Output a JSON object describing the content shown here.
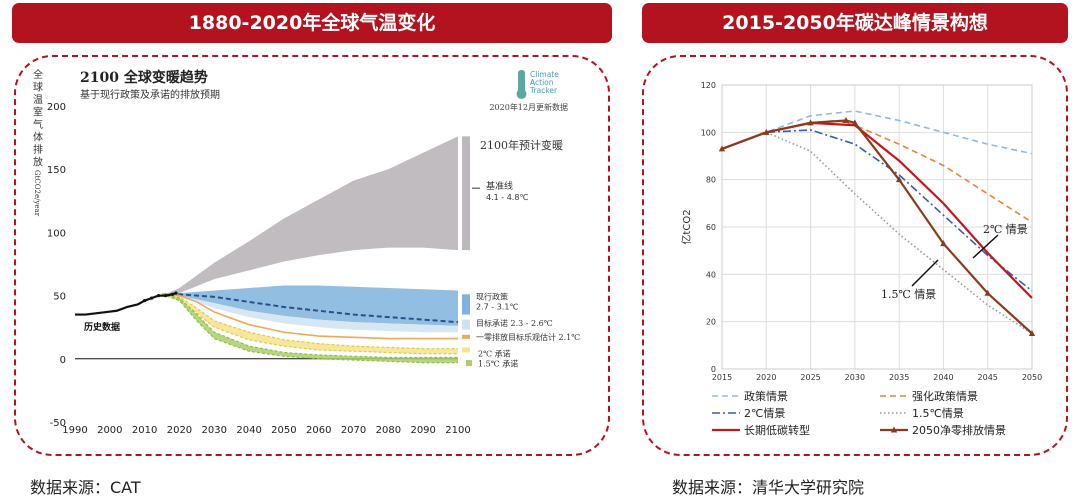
{
  "panels": {
    "left": {
      "title": "1880-2020年全球气温变化",
      "source": "数据来源：CAT"
    },
    "right": {
      "title": "2015-2050年碳达峰情景构想",
      "source": "数据来源：清华大学研究院"
    }
  },
  "colors": {
    "banner": "#b3131f",
    "frame": "#b3131f"
  },
  "chart_data": [
    {
      "type": "area",
      "title": "2100 全球变暖趋势",
      "subtitle": "基于现行政策及承诺的排放预期",
      "logo_text": "Climate Action Tracker",
      "update_note": "2020年12月更新数据",
      "ylabel": "全球温室气体排放 GtCO2e/year",
      "ylim": [
        -50,
        200
      ],
      "yticks": [
        -50,
        0,
        50,
        100,
        150,
        200
      ],
      "xlim": [
        1990,
        2100
      ],
      "xticks": [
        1990,
        2000,
        2010,
        2020,
        2030,
        2040,
        2050,
        2060,
        2070,
        2080,
        2090,
        2100
      ],
      "warming_header": "2100年预计变暖",
      "series": [
        {
          "name": "历史数据",
          "kind": "line",
          "color": "#111111",
          "x": [
            1990,
            1993,
            1996,
            1999,
            2002,
            2005,
            2008,
            2010,
            2012,
            2014,
            2016,
            2018,
            2019
          ],
          "y": [
            35,
            35,
            36,
            37,
            38,
            41,
            43,
            46,
            48,
            50,
            50,
            51,
            52
          ]
        },
        {
          "name": "基准线",
          "range": "4.1 - 4.8℃",
          "kind": "band",
          "color": "#bdb8bd",
          "x": [
            2015,
            2020,
            2030,
            2040,
            2050,
            2060,
            2070,
            2080,
            2090,
            2100
          ],
          "upper": [
            50,
            56,
            76,
            93,
            111,
            126,
            141,
            150,
            163,
            176
          ],
          "lower": [
            50,
            52,
            63,
            70,
            77,
            82,
            86,
            88,
            88,
            86
          ]
        },
        {
          "name": "现行政策",
          "range": "2.7 - 3.1℃",
          "kind": "band",
          "color": "#7fb3dd",
          "dashed_mid": true,
          "x": [
            2015,
            2020,
            2030,
            2040,
            2050,
            2060,
            2070,
            2080,
            2090,
            2100
          ],
          "upper": [
            51,
            52,
            54,
            56,
            58,
            58,
            57,
            56,
            55,
            54
          ],
          "mid": [
            51,
            51,
            49,
            45,
            41,
            38,
            35,
            33,
            31,
            29
          ],
          "lower": [
            51,
            50,
            44,
            38,
            34,
            31,
            29,
            28,
            27,
            26
          ]
        },
        {
          "name": "目标承诺",
          "range": "2.3 - 2.6℃",
          "kind": "band",
          "color": "#cfe2f1",
          "x": [
            2015,
            2020,
            2030,
            2040,
            2050,
            2060,
            2070,
            2080,
            2090,
            2100
          ],
          "upper": [
            51,
            50,
            44,
            38,
            34,
            31,
            29,
            28,
            27,
            26
          ],
          "lower": [
            51,
            50,
            40,
            33,
            28,
            25,
            23,
            22,
            21,
            21
          ]
        },
        {
          "name": "一零排放目标乐观估计",
          "range": "2.1℃",
          "kind": "line",
          "color": "#f0a85a",
          "x": [
            2015,
            2020,
            2025,
            2030,
            2040,
            2050,
            2060,
            2070,
            2080,
            2090,
            2100
          ],
          "y": [
            51,
            50,
            45,
            37,
            27,
            21,
            18,
            17,
            16,
            16,
            16
          ]
        },
        {
          "name": "2℃ 承诺",
          "kind": "band",
          "color": "#f3e38a",
          "x": [
            2015,
            2020,
            2025,
            2030,
            2040,
            2050,
            2060,
            2070,
            2080,
            2090,
            2100
          ],
          "upper": [
            51,
            49,
            40,
            30,
            21,
            15,
            12,
            10,
            9,
            8,
            8
          ],
          "lower": [
            51,
            47,
            36,
            25,
            15,
            10,
            7,
            6,
            5,
            4,
            4
          ]
        },
        {
          "name": "1.5℃ 承诺",
          "kind": "band",
          "color": "#a9cf68",
          "x": [
            2015,
            2020,
            2025,
            2030,
            2040,
            2050,
            2060,
            2070,
            2080,
            2090,
            2100
          ],
          "upper": [
            51,
            48,
            35,
            21,
            10,
            5,
            3,
            2,
            1,
            1,
            1
          ],
          "lower": [
            51,
            46,
            30,
            16,
            6,
            2,
            0,
            -1,
            -2,
            -3,
            -3
          ]
        }
      ],
      "annotations": [
        "历史数据"
      ]
    },
    {
      "type": "line",
      "ylabel": "亿tCO2",
      "ylim": [
        0,
        120
      ],
      "yticks": [
        0,
        20,
        40,
        60,
        80,
        100,
        120
      ],
      "xlim": [
        2015,
        2050
      ],
      "xticks": [
        2015,
        2020,
        2025,
        2030,
        2035,
        2040,
        2045,
        2050
      ],
      "grid": true,
      "legend_position": "bottom",
      "series": [
        {
          "name": "政策情景",
          "style": "dashed",
          "color": "#8fb8e0",
          "x": [
            2015,
            2020,
            2025,
            2030,
            2035,
            2040,
            2045,
            2050
          ],
          "y": [
            93,
            100,
            107,
            109,
            105,
            100,
            95,
            91
          ]
        },
        {
          "name": "强化政策情景",
          "style": "dashed",
          "color": "#e8843a",
          "x": [
            2015,
            2020,
            2025,
            2028,
            2030,
            2035,
            2040,
            2045,
            2050
          ],
          "y": [
            93,
            100,
            104,
            105,
            103,
            95,
            86,
            74,
            62
          ]
        },
        {
          "name": "2℃情景",
          "style": "dashdot",
          "color": "#2f5fb5",
          "x": [
            2015,
            2020,
            2025,
            2030,
            2035,
            2040,
            2045,
            2050
          ],
          "y": [
            93,
            100,
            101,
            95,
            82,
            65,
            48,
            33
          ]
        },
        {
          "name": "1.5℃情景",
          "style": "dotted",
          "color": "#9a9a9a",
          "x": [
            2015,
            2020,
            2025,
            2030,
            2035,
            2040,
            2045,
            2050
          ],
          "y": [
            93,
            100,
            92,
            74,
            57,
            42,
            27,
            15
          ]
        },
        {
          "name": "长期低碳转型",
          "style": "solid",
          "color": "#c4161c",
          "x": [
            2015,
            2020,
            2025,
            2030,
            2035,
            2040,
            2045,
            2050
          ],
          "y": [
            93,
            100,
            104,
            103,
            88,
            70,
            49,
            30
          ]
        },
        {
          "name": "2050净零排放情景",
          "style": "solid-markers",
          "color": "#8b3a1c",
          "x": [
            2015,
            2020,
            2025,
            2029,
            2030,
            2035,
            2040,
            2045,
            2050
          ],
          "y": [
            93,
            100,
            104,
            105,
            104,
            80,
            53,
            32,
            15
          ]
        }
      ],
      "annotations": [
        "2℃ 情景",
        "1.5℃ 情景"
      ]
    }
  ]
}
